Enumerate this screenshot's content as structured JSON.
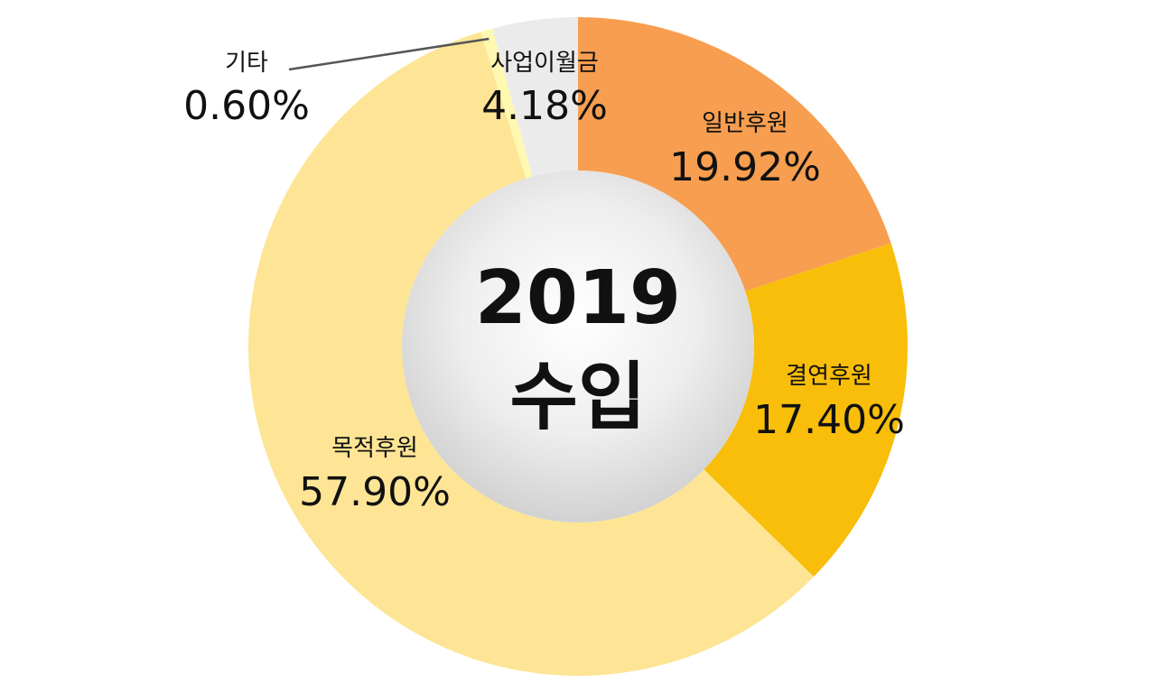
{
  "chart_data": {
    "type": "pie",
    "variant": "donut",
    "center_label": {
      "line1": "2019",
      "line2": "수입"
    },
    "slices": [
      {
        "label": "일반후원",
        "value": 19.92,
        "value_text": "19.92%",
        "color": "#F79E50"
      },
      {
        "label": "결연후원",
        "value": 17.4,
        "value_text": "17.40%",
        "color": "#F8BE09"
      },
      {
        "label": "목적후원",
        "value": 57.9,
        "value_text": "57.90%",
        "color": "#FDE595"
      },
      {
        "label": "기타",
        "value": 0.6,
        "value_text": "0.60%",
        "color": "#FFF8B0"
      },
      {
        "label": "사업이월금",
        "value": 4.18,
        "value_text": "4.18%",
        "color": "#EBEBEB"
      }
    ],
    "legend": "none",
    "leader_line_color": "#555555"
  }
}
